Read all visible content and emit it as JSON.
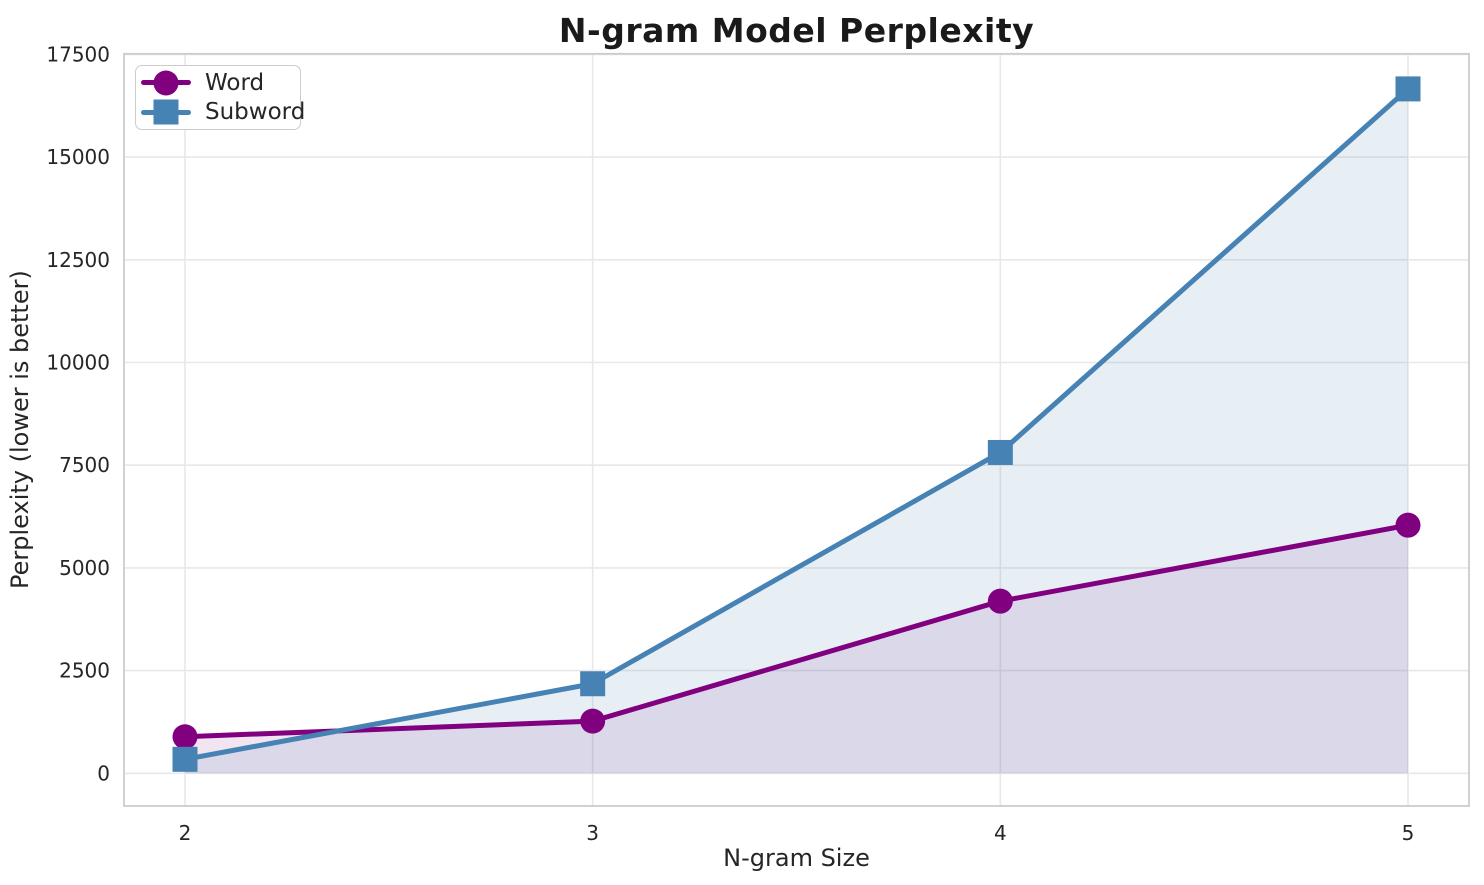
{
  "chart_data": {
    "type": "line",
    "title": "N-gram Model Perplexity",
    "xlabel": "N-gram Size",
    "ylabel": "Perplexity (lower is better)",
    "categories": [
      "2",
      "3",
      "4",
      "5"
    ],
    "series": [
      {
        "name": "Word",
        "marker": "circle",
        "color": "#800080",
        "fill_color": "rgba(128,0,128,0.10)",
        "values": [
          890,
          1270,
          4190,
          6040
        ]
      },
      {
        "name": "Subword",
        "marker": "square",
        "color": "#4682B4",
        "fill_color": "rgba(70,130,180,0.13)",
        "values": [
          340,
          2180,
          7810,
          16660
        ]
      }
    ],
    "y_ticks": [
      "0",
      "2500",
      "5000",
      "7500",
      "10000",
      "12500",
      "15000",
      "17500"
    ],
    "y_tick_values": [
      0,
      2500,
      5000,
      7500,
      10000,
      12500,
      15000,
      17500
    ],
    "ylim": [
      -800,
      17500
    ],
    "grid": true,
    "legend_position": "upper-left",
    "area_fill": true
  },
  "colors": {
    "grid": "#e8e8e8",
    "spine": "#cccccc",
    "text": "#262626",
    "title_text": "#1a1a1a",
    "background": "#ffffff"
  }
}
